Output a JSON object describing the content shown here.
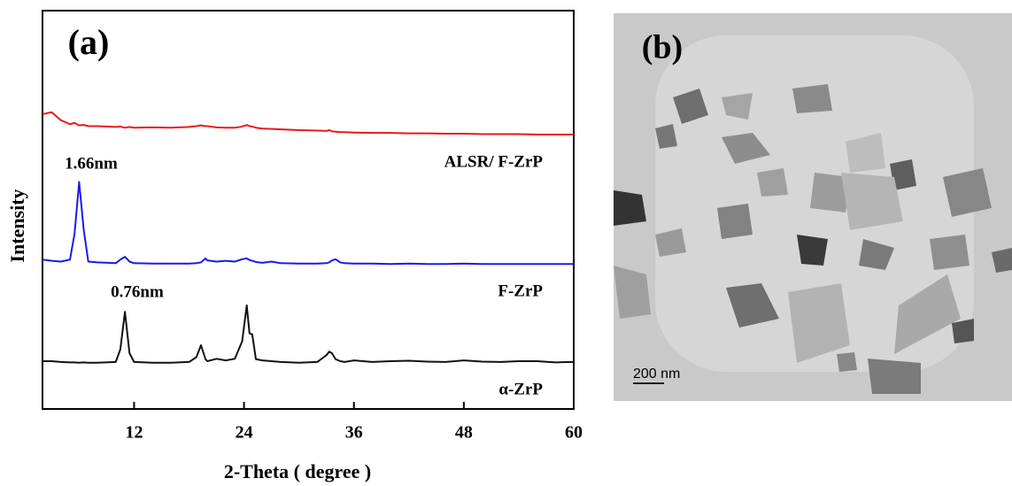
{
  "chart_data": {
    "type": "line",
    "panel_label": "(a)",
    "x_label": "2-Theta ( degree )",
    "y_label": "Intensity",
    "annotations": [
      "1.66nm",
      "0.76nm"
    ],
    "xlim": [
      2,
      60
    ],
    "ylim": [
      0,
      100
    ],
    "xticks": [
      12,
      24,
      36,
      48,
      60
    ],
    "x": [
      2,
      3,
      4,
      5,
      5.5,
      6,
      6.5,
      7,
      8,
      10,
      10.5,
      11,
      11.5,
      12,
      14,
      16,
      18,
      18.8,
      19.3,
      19.8,
      20,
      21,
      22,
      23,
      23.8,
      24.3,
      24.6,
      24.9,
      25.3,
      26,
      27,
      28,
      30,
      32,
      33,
      33.3,
      33.6,
      34,
      34.5,
      35,
      36,
      38,
      40,
      42,
      44,
      46,
      48,
      50,
      52,
      54,
      56,
      58,
      60
    ],
    "series": [
      {
        "name": "ALSR/ F-ZrP",
        "color": "#e8191c",
        "values": [
          74,
          74.5,
          72.5,
          71.5,
          71.8,
          71.2,
          71.3,
          71,
          71,
          70.8,
          70.9,
          70.6,
          70.8,
          70.6,
          70.7,
          70.6,
          70.8,
          71,
          71.2,
          71,
          71,
          70.7,
          70.6,
          70.6,
          70.9,
          71.3,
          71,
          70.9,
          70.6,
          70.4,
          70.3,
          70.2,
          70,
          69.9,
          69.8,
          70,
          69.7,
          69.6,
          69.5,
          69.5,
          69.4,
          69.3,
          69.3,
          69.2,
          69.2,
          69.1,
          69.1,
          69,
          69,
          69,
          68.9,
          68.9,
          68.9
        ]
      },
      {
        "name": "F-ZrP",
        "color": "#1a1aef",
        "values": [
          37.5,
          37.2,
          37,
          37.5,
          44,
          57,
          45,
          37,
          36.8,
          36.6,
          37.5,
          38.2,
          37,
          36.6,
          36.5,
          36.5,
          36.5,
          36.6,
          36.8,
          37.8,
          37.3,
          37,
          37.2,
          37,
          37.6,
          37.8,
          37.4,
          37.2,
          36.9,
          36.7,
          37,
          36.6,
          36.5,
          36.5,
          36.6,
          36.8,
          37.3,
          37.6,
          36.8,
          36.6,
          36.5,
          36.5,
          36.4,
          36.5,
          36.4,
          36.4,
          36.5,
          36.4,
          36.4,
          36.4,
          36.4,
          36.4,
          36.4
        ]
      },
      {
        "name": "α-ZrP",
        "color": "#111111",
        "values": [
          12,
          12,
          11.8,
          11.7,
          11.7,
          11.6,
          11.7,
          11.6,
          11.6,
          11.8,
          15,
          24.4,
          14,
          11.8,
          11.6,
          11.6,
          11.8,
          13,
          16,
          12.5,
          12,
          12.6,
          12.2,
          12.6,
          17,
          26,
          19,
          18.7,
          12.5,
          12.2,
          12,
          11.8,
          11.6,
          11.8,
          13.5,
          14.4,
          14,
          12.5,
          12,
          11.8,
          12.2,
          11.8,
          12,
          12.1,
          11.9,
          11.8,
          12.2,
          11.9,
          11.8,
          12,
          12,
          11.7,
          11.8
        ]
      }
    ]
  },
  "image_panel": {
    "label": "(b)",
    "scale_bar": "200 nm"
  }
}
